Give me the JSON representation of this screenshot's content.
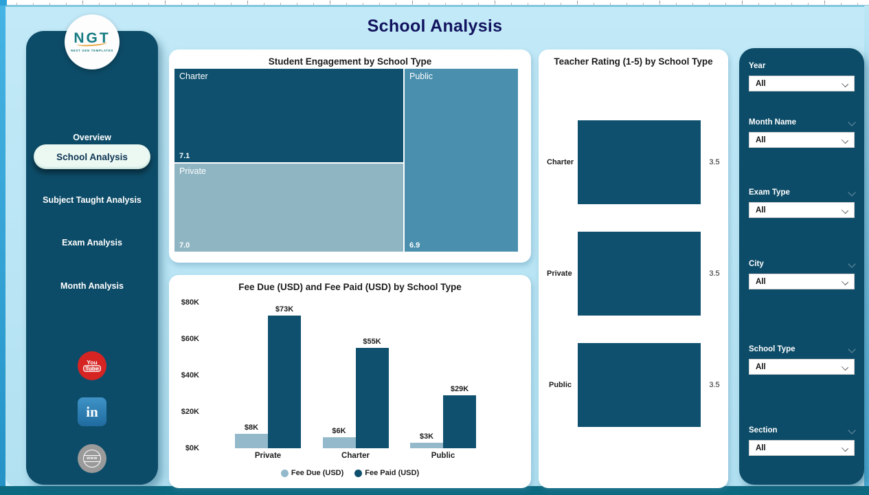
{
  "page": {
    "title": "School Analysis"
  },
  "colors": {
    "sidebar_bg": "#0d4c68",
    "page_bg": "#b2e1f2",
    "accent_dark_teal": "#0e506e",
    "tile_charter": "#0e506e",
    "tile_private": "#8fb5c3",
    "tile_public": "#4a8fad",
    "fee_due": "#93b9cb",
    "fee_paid": "#0e506e",
    "title_navy": "#12135e",
    "edge_left_blue": "#2aa2d8",
    "edge_bottom_teal": "#0b6a80",
    "active_pill": "#ecf9f3"
  },
  "sidebar": {
    "logo": {
      "text": "NGT",
      "subtext": "NEXT GEN TEMPLATES"
    },
    "items": [
      {
        "label": "Overview",
        "active": false
      },
      {
        "label": "School Analysis",
        "active": true
      },
      {
        "label": "Subject Taught Analysis",
        "active": false
      },
      {
        "label": "Exam Analysis",
        "active": false
      },
      {
        "label": "Month Analysis",
        "active": false
      }
    ],
    "social": [
      "youtube",
      "linkedin",
      "website"
    ],
    "youtube_line1": "You",
    "youtube_line2": "Tube",
    "linkedin_text": "in",
    "www_text": "www"
  },
  "chart_data": [
    {
      "type": "heatmap",
      "subtype": "treemap",
      "title": "Student Engagement by School Type",
      "items": [
        {
          "label": "Charter",
          "value": "7.1",
          "color": "#0e506e"
        },
        {
          "label": "Private",
          "value": "7.0",
          "color": "#8fb5c3"
        },
        {
          "label": "Public",
          "value": "6.9",
          "color": "#4a8fad"
        }
      ]
    },
    {
      "type": "bar",
      "title": "Fee Due (USD) and Fee Paid (USD) by School Type",
      "categories": [
        "Private",
        "Charter",
        "Public"
      ],
      "series": [
        {
          "name": "Fee Due (USD)",
          "color": "#93b9cb",
          "values": [
            8000,
            6000,
            3000
          ],
          "labels": [
            "$8K",
            "$6K",
            "$3K"
          ]
        },
        {
          "name": "Fee Paid (USD)",
          "color": "#0e506e",
          "values": [
            73000,
            55000,
            29000
          ],
          "labels": [
            "$73K",
            "$55K",
            "$29K"
          ]
        }
      ],
      "ylim": [
        0,
        80000
      ],
      "yticks": [
        "$0K",
        "$20K",
        "$40K",
        "$60K",
        "$80K"
      ],
      "grid": false,
      "legend_position": "bottom"
    },
    {
      "type": "bar",
      "subtype": "horizontal",
      "title": "Teacher Rating (1-5) by School Type",
      "categories": [
        "Charter",
        "Private",
        "Public"
      ],
      "values": [
        3.5,
        3.5,
        3.5
      ],
      "value_labels": [
        "3.5",
        "3.5",
        "3.5"
      ],
      "xlim": [
        0,
        4
      ],
      "bar_color": "#0e506e",
      "grid": false
    }
  ],
  "filters": [
    {
      "label": "Year",
      "value": "All",
      "header_chevron": false
    },
    {
      "label": "Month Name",
      "value": "All",
      "header_chevron": true
    },
    {
      "label": "Exam Type",
      "value": "All",
      "header_chevron": true
    },
    {
      "label": "City",
      "value": "All",
      "header_chevron": true
    },
    {
      "label": "School Type",
      "value": "All",
      "header_chevron": true
    },
    {
      "label": "Section",
      "value": "All",
      "header_chevron": true
    }
  ]
}
